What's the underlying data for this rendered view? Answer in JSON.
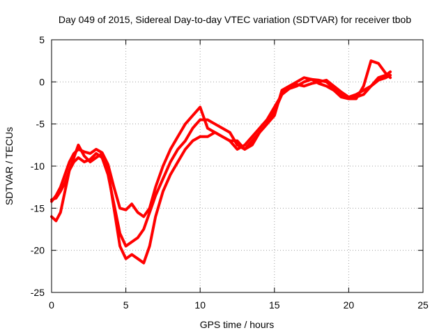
{
  "chart_data": {
    "type": "line",
    "title": "Day 049 of 2015, Sidereal Day-to-day VTEC variation (SDTVAR) for receiver tbob",
    "xlabel": "GPS time / hours",
    "ylabel": "SDTVAR / TECUs",
    "xlim": [
      0,
      25
    ],
    "ylim": [
      -25,
      5
    ],
    "xticks": [
      0,
      5,
      10,
      15,
      20,
      25
    ],
    "yticks": [
      -25,
      -20,
      -15,
      -10,
      -5,
      0,
      5
    ],
    "grid": true,
    "color": "#ff0000",
    "series": [
      {
        "x": [
          0,
          0.3,
          0.6,
          0.9,
          1.2,
          1.5,
          1.8,
          2.2,
          2.6,
          3.0,
          3.4,
          3.8,
          4.2,
          4.6,
          5.0,
          5.4,
          5.8,
          6.2,
          6.6,
          7.0,
          7.5,
          8.0,
          8.5,
          9.0,
          9.5,
          10.0,
          10.5,
          11.0,
          11.5,
          12.0,
          12.5,
          13.0,
          13.5,
          14.0,
          14.5,
          15.0,
          15.5,
          16.0,
          16.5,
          17.0,
          17.5,
          18.0,
          18.5,
          19.0,
          19.5,
          20.0,
          20.5,
          21.0,
          21.5,
          22.0,
          22.5,
          22.8
        ],
        "y": [
          -14.2,
          -13.5,
          -12.5,
          -11.0,
          -9.5,
          -8.5,
          -8.0,
          -8.3,
          -8.5,
          -8.0,
          -8.4,
          -9.8,
          -12.5,
          -15.0,
          -15.2,
          -14.5,
          -15.5,
          -16.0,
          -15.0,
          -12.5,
          -10.0,
          -8.0,
          -6.5,
          -5.0,
          -4.0,
          -3.0,
          -5.5,
          -6.0,
          -6.5,
          -7.0,
          -8.0,
          -7.5,
          -6.5,
          -5.5,
          -4.5,
          -3.0,
          -1.5,
          -0.5,
          -0.3,
          -0.5,
          -0.2,
          0.0,
          0.2,
          -0.5,
          -1.2,
          -1.8,
          -1.5,
          -1.0,
          -0.5,
          0.5,
          0.8,
          1.2
        ]
      },
      {
        "x": [
          0,
          0.3,
          0.6,
          0.9,
          1.2,
          1.5,
          1.8,
          2.2,
          2.6,
          3.0,
          3.4,
          3.8,
          4.2,
          4.6,
          5.0,
          5.4,
          5.8,
          6.2,
          6.6,
          7.0,
          7.5,
          8.0,
          8.5,
          9.0,
          9.5,
          10.0,
          10.5,
          11.0,
          11.5,
          12.0,
          12.5,
          13.0,
          13.5,
          14.0,
          14.5,
          15.0,
          15.5,
          16.0,
          16.5,
          17.0,
          17.5,
          18.0,
          18.5,
          19.0,
          19.5,
          20.0,
          20.5,
          21.0,
          21.5,
          22.0,
          22.5,
          22.8
        ],
        "y": [
          -16.0,
          -16.5,
          -15.5,
          -13.0,
          -10.5,
          -9.5,
          -9.0,
          -9.5,
          -9.2,
          -8.5,
          -9.0,
          -11.0,
          -14.5,
          -18.0,
          -19.5,
          -19.0,
          -18.5,
          -17.5,
          -15.5,
          -13.5,
          -11.5,
          -9.5,
          -8.0,
          -7.0,
          -5.5,
          -4.5,
          -4.5,
          -5.0,
          -5.5,
          -6.0,
          -7.5,
          -8.0,
          -7.0,
          -6.0,
          -5.0,
          -3.5,
          -1.5,
          -0.8,
          -0.5,
          0.0,
          0.3,
          0.2,
          0.0,
          -0.8,
          -1.5,
          -2.0,
          -1.8,
          -1.5,
          -0.5,
          0.2,
          0.5,
          0.8
        ]
      },
      {
        "x": [
          0,
          0.3,
          0.6,
          0.9,
          1.2,
          1.5,
          1.8,
          2.2,
          2.6,
          3.0,
          3.4,
          3.8,
          4.2,
          4.6,
          5.0,
          5.4,
          5.8,
          6.2,
          6.6,
          7.0,
          7.5,
          8.0,
          8.5,
          9.0,
          9.5,
          10.0,
          10.5,
          11.0,
          11.5,
          12.0,
          12.5,
          13.0,
          13.5,
          14.0,
          14.5,
          15.0,
          15.5,
          16.0,
          16.5,
          17.0,
          17.5,
          18.0,
          18.5,
          19.0,
          19.5,
          20.0,
          20.5,
          21.0,
          21.5,
          22.0,
          22.5,
          22.8
        ],
        "y": [
          -14.0,
          -13.8,
          -13.0,
          -12.0,
          -10.5,
          -9.0,
          -7.5,
          -8.8,
          -9.5,
          -9.0,
          -8.5,
          -10.5,
          -15.0,
          -19.5,
          -21.0,
          -20.5,
          -21.0,
          -21.5,
          -19.5,
          -16.0,
          -13.0,
          -11.0,
          -9.5,
          -8.0,
          -7.0,
          -6.5,
          -6.5,
          -6.0,
          -6.5,
          -7.0,
          -7.0,
          -8.0,
          -7.5,
          -6.0,
          -5.0,
          -4.0,
          -1.0,
          -0.5,
          0.0,
          0.5,
          0.3,
          -0.2,
          -0.5,
          -1.0,
          -1.8,
          -2.0,
          -2.0,
          -0.5,
          2.5,
          2.2,
          1.0,
          0.5
        ]
      }
    ]
  }
}
